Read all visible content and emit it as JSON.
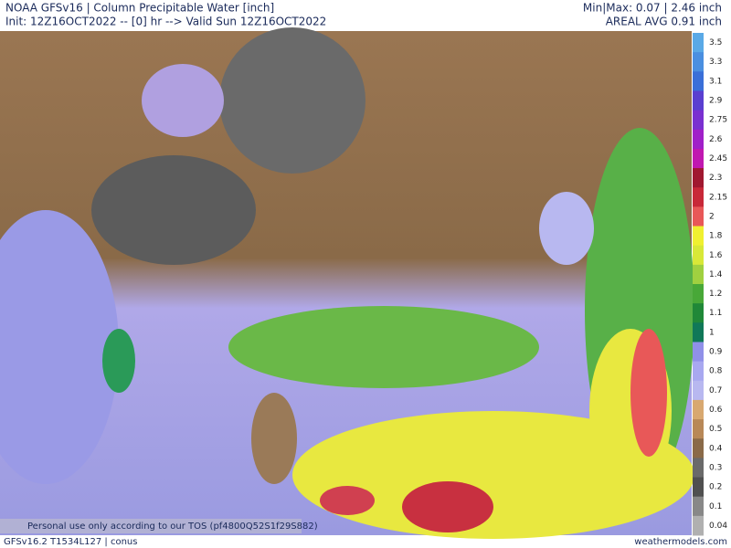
{
  "header": {
    "title": "NOAA GFSv16 | Column Precipitable Water [inch]",
    "init": "Init: 12Z16OCT2022 -- [0] hr --> Valid Sun 12Z16OCT2022",
    "minmax": "Min|Max: 0.07 | 2.46 inch",
    "areal_avg": "AREAL AVG 0.91 inch"
  },
  "colorbar": {
    "levels": [
      3.5,
      3.3,
      3.1,
      2.9,
      2.75,
      2.6,
      2.45,
      2.3,
      2.15,
      2,
      1.8,
      1.6,
      1.4,
      1.2,
      1.1,
      1,
      0.9,
      0.8,
      0.7,
      0.6,
      0.5,
      0.4,
      0.3,
      0.2,
      0.1,
      0.04
    ],
    "colors": [
      "#5aa9e6",
      "#4a8fe0",
      "#3a6fd8",
      "#5a3fd0",
      "#7a30d0",
      "#a020c8",
      "#c018b0",
      "#a01830",
      "#c82838",
      "#e85858",
      "#f0f030",
      "#d8e838",
      "#a0d040",
      "#48a838",
      "#208838",
      "#107858",
      "#9090e8",
      "#a8a8f0",
      "#b8b8f0",
      "#d8a870",
      "#b88858",
      "#8a6a48",
      "#6a6a6a",
      "#505050",
      "#888888",
      "#b0b0b0"
    ]
  },
  "footer": {
    "model": "GFSv16.2 T1534L127 | conus",
    "site": "weathermodels.com",
    "tos": "Personal use only according to our TOS (pf4800Q52S1f29S882)"
  }
}
